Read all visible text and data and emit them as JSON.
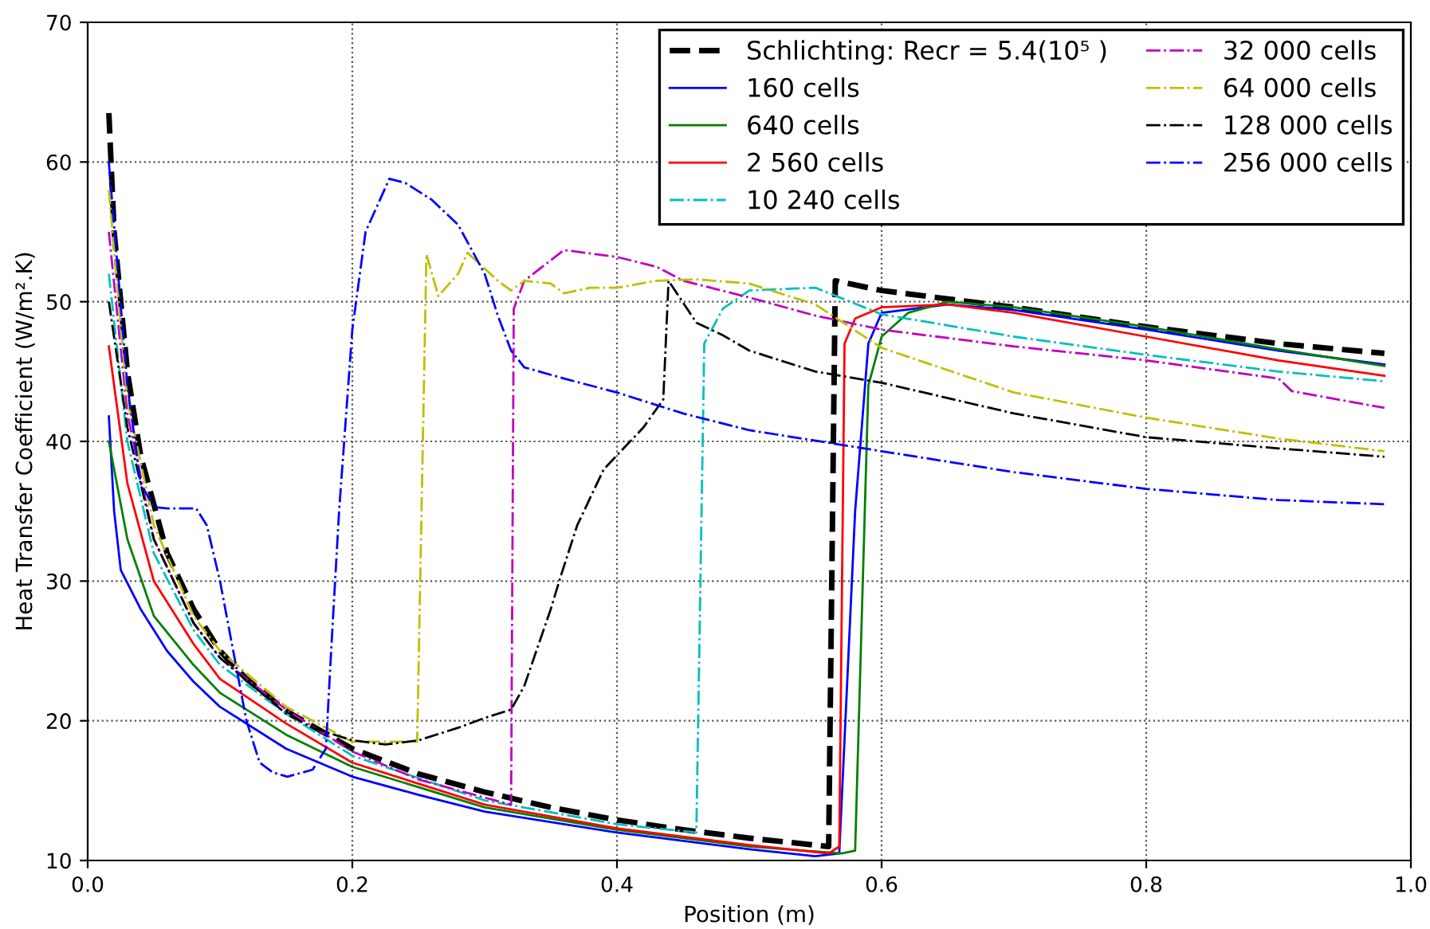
{
  "chart_data": {
    "type": "line",
    "xlabel": "Position (m)",
    "ylabel": "Heat Transfer Coefficient (W/m².K)",
    "xlim": [
      0,
      1.0
    ],
    "ylim": [
      10,
      70
    ],
    "xticks": [
      {
        "value": 0,
        "label": "0.0"
      },
      {
        "value": 0.2,
        "label": "0.2"
      },
      {
        "value": 0.4,
        "label": "0.4"
      },
      {
        "value": 0.6,
        "label": "0.6"
      },
      {
        "value": 0.8,
        "label": "0.8"
      },
      {
        "value": 1.0,
        "label": "1.0"
      }
    ],
    "yticks": [
      10,
      20,
      30,
      40,
      50,
      60,
      70
    ],
    "grid": true,
    "legend": "top right",
    "series": [
      {
        "name": "Schlichting: Recr = 5.4(10⁵ )",
        "color": "#000000",
        "line_style": "dashed",
        "x": [
          0.016,
          0.02,
          0.03,
          0.04,
          0.06,
          0.08,
          0.1,
          0.12,
          0.15,
          0.2,
          0.25,
          0.3,
          0.35,
          0.4,
          0.45,
          0.5,
          0.56,
          0.565,
          0.6,
          0.7,
          0.8,
          0.9,
          0.98
        ],
        "values": [
          63.5,
          55,
          45,
          39,
          32,
          28,
          25,
          23,
          20.7,
          18,
          16.2,
          14.9,
          13.8,
          12.9,
          12.2,
          11.6,
          11,
          51.5,
          50.8,
          49.6,
          48.2,
          47,
          46.3
        ]
      },
      {
        "name": "160 cells",
        "color": "#0000ff",
        "line_style": "solid",
        "x": [
          0.016,
          0.02,
          0.025,
          0.04,
          0.06,
          0.08,
          0.1,
          0.15,
          0.2,
          0.25,
          0.3,
          0.4,
          0.5,
          0.55,
          0.568,
          0.58,
          0.59,
          0.6,
          0.65,
          0.7,
          0.8,
          0.9,
          0.98
        ],
        "values": [
          41.8,
          35,
          30.8,
          28,
          25,
          22.8,
          21,
          18,
          16,
          14.7,
          13.5,
          12,
          10.8,
          10.3,
          10.5,
          35,
          47,
          49.2,
          49.8,
          49.4,
          48,
          46.5,
          45.5
        ]
      },
      {
        "name": "640 cells",
        "color": "#008000",
        "line_style": "solid",
        "x": [
          0.016,
          0.03,
          0.05,
          0.08,
          0.1,
          0.15,
          0.2,
          0.3,
          0.4,
          0.5,
          0.57,
          0.58,
          0.59,
          0.6,
          0.62,
          0.65,
          0.7,
          0.8,
          0.9,
          0.98
        ],
        "values": [
          40,
          33,
          27.5,
          24,
          22,
          19,
          16.7,
          13.8,
          12.2,
          11,
          10.5,
          10.7,
          44,
          47.5,
          49.2,
          50,
          49.6,
          48.2,
          46.6,
          45.4
        ]
      },
      {
        "name": "2 560 cells",
        "color": "#ff0000",
        "line_style": "solid",
        "x": [
          0.016,
          0.03,
          0.05,
          0.08,
          0.1,
          0.15,
          0.2,
          0.3,
          0.4,
          0.5,
          0.56,
          0.568,
          0.572,
          0.58,
          0.6,
          0.65,
          0.7,
          0.8,
          0.9,
          0.98
        ],
        "values": [
          46.8,
          37,
          30,
          25.5,
          23,
          19.8,
          17,
          14,
          12.3,
          11.1,
          10.5,
          11,
          47,
          48.8,
          49.6,
          49.8,
          49.2,
          47.5,
          45.8,
          44.7
        ]
      },
      {
        "name": "10 240 cells",
        "color": "#00bfbf",
        "line_style": "dashdot",
        "x": [
          0.016,
          0.03,
          0.05,
          0.08,
          0.1,
          0.15,
          0.2,
          0.3,
          0.4,
          0.46,
          0.466,
          0.48,
          0.5,
          0.55,
          0.6,
          0.7,
          0.8,
          0.9,
          0.98
        ],
        "values": [
          52,
          40,
          32,
          26.5,
          24,
          20.5,
          17.5,
          14.3,
          12.6,
          12,
          47,
          49.5,
          50.8,
          51,
          49.1,
          47.5,
          46.2,
          45,
          44.3
        ]
      },
      {
        "name": "32 000 cells",
        "color": "#bf00bf",
        "line_style": "dashdot",
        "x": [
          0.016,
          0.03,
          0.05,
          0.08,
          0.1,
          0.15,
          0.2,
          0.25,
          0.3,
          0.32,
          0.322,
          0.33,
          0.36,
          0.4,
          0.43,
          0.45,
          0.5,
          0.55,
          0.6,
          0.7,
          0.8,
          0.9,
          0.91,
          0.98
        ],
        "values": [
          55,
          42,
          33,
          27,
          24.5,
          20.8,
          17.8,
          15.8,
          14.5,
          14,
          49.5,
          51.5,
          53.7,
          53.2,
          52.5,
          51.5,
          50.3,
          49,
          48,
          46.8,
          45.8,
          44.5,
          43.6,
          42.4
        ]
      },
      {
        "name": "64 000 cells",
        "color": "#bfbf00",
        "line_style": "dashdot",
        "x": [
          0.016,
          0.03,
          0.05,
          0.08,
          0.1,
          0.15,
          0.2,
          0.249,
          0.256,
          0.265,
          0.28,
          0.287,
          0.31,
          0.32,
          0.33,
          0.35,
          0.36,
          0.38,
          0.4,
          0.43,
          0.46,
          0.5,
          0.55,
          0.6,
          0.7,
          0.8,
          0.9,
          0.98
        ],
        "values": [
          58,
          43,
          34,
          27.5,
          25,
          21,
          18.5,
          18.5,
          53.4,
          50.4,
          52,
          53.5,
          51.5,
          50.8,
          51.5,
          51.3,
          50.6,
          51,
          51,
          51.5,
          51.6,
          51.3,
          49.8,
          46.7,
          43.5,
          41.7,
          40.2,
          39.3
        ]
      },
      {
        "name": "128 000 cells",
        "color": "#000000",
        "line_style": "dashdot",
        "x": [
          0.016,
          0.03,
          0.05,
          0.08,
          0.1,
          0.15,
          0.17,
          0.2,
          0.225,
          0.25,
          0.28,
          0.3,
          0.32,
          0.33,
          0.35,
          0.358,
          0.37,
          0.39,
          0.42,
          0.435,
          0.439,
          0.46,
          0.48,
          0.5,
          0.55,
          0.6,
          0.7,
          0.8,
          0.9,
          0.98
        ],
        "values": [
          50,
          41,
          33,
          27,
          24.5,
          20.5,
          19.5,
          18.6,
          18.3,
          18.6,
          19.5,
          20.2,
          20.8,
          22.5,
          28,
          30.5,
          34,
          38,
          41,
          43,
          51.5,
          48.5,
          47.6,
          46.5,
          45,
          44.2,
          42,
          40.3,
          39.5,
          38.9
        ]
      },
      {
        "name": "256 000 cells",
        "color": "#0000ff",
        "line_style": "dashdot",
        "x": [
          0.016,
          0.03,
          0.04,
          0.05,
          0.06,
          0.082,
          0.09,
          0.1,
          0.11,
          0.12,
          0.13,
          0.14,
          0.151,
          0.17,
          0.18,
          0.184,
          0.19,
          0.2,
          0.21,
          0.228,
          0.24,
          0.26,
          0.28,
          0.3,
          0.31,
          0.32,
          0.33,
          0.36,
          0.4,
          0.45,
          0.5,
          0.6,
          0.7,
          0.8,
          0.9,
          0.98
        ],
        "values": [
          60,
          44,
          37,
          35.3,
          35.2,
          35.2,
          34,
          30,
          25,
          20,
          17,
          16.3,
          16,
          16.5,
          18,
          25,
          35,
          48,
          55,
          58.8,
          58.5,
          57.3,
          55.5,
          52,
          49,
          46.5,
          45.3,
          44.5,
          43.5,
          42,
          40.8,
          39.3,
          37.8,
          36.6,
          35.8,
          35.5
        ]
      }
    ]
  }
}
